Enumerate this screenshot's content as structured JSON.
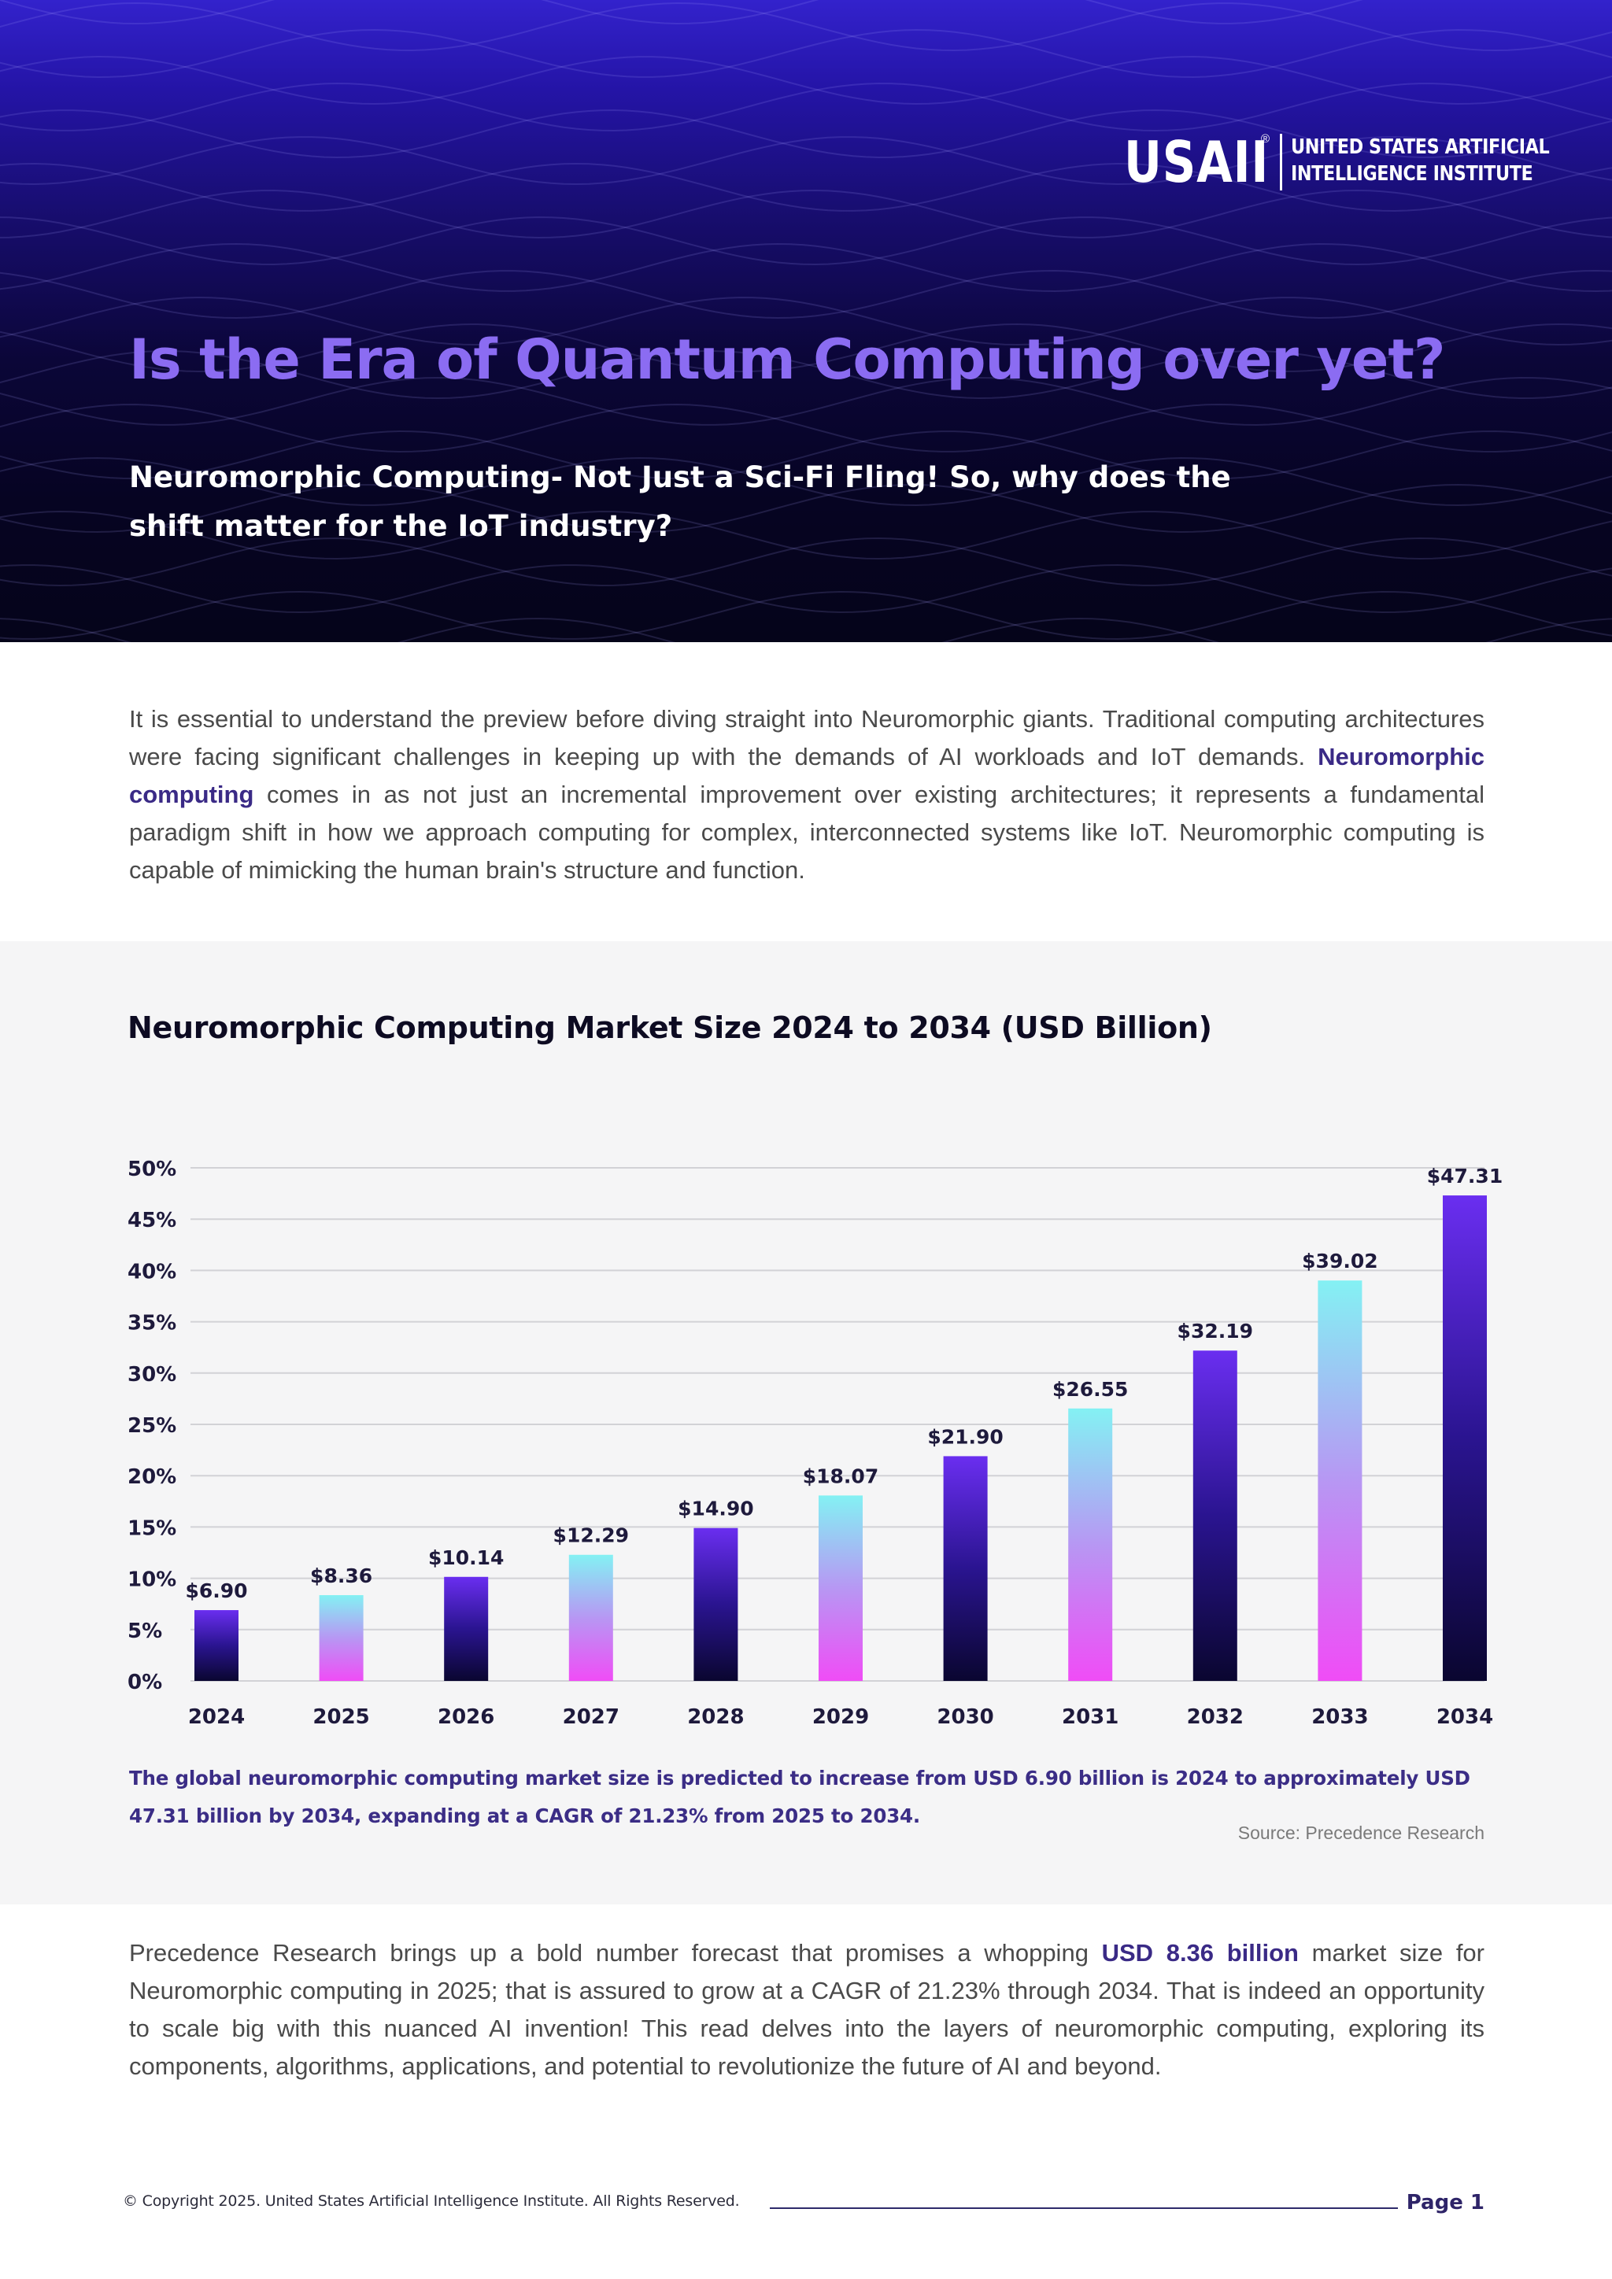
{
  "brand": {
    "mark": "USAII",
    "registered": "®",
    "line1": "UNITED STATES ARTIFICIAL",
    "line2": "INTELLIGENCE INSTITUTE"
  },
  "hero": {
    "title": "Is the Era of Quantum Computing over yet?",
    "subtitle": "Neuromorphic Computing- Not Just a Sci-Fi Fling! So, why does the shift matter for the IoT industry?"
  },
  "intro": {
    "text_before": "It is essential to understand the preview before diving straight into Neuromorphic giants. Traditional computing architectures were facing significant challenges in keeping up with the demands of AI workloads and IoT demands. ",
    "bold": "Neuromorphic computing",
    "text_after": " comes in as not just an incremental improvement over existing architectures; it represents a fundamental paradigm shift in how we approach computing for complex, interconnected systems like IoT. Neuromorphic computing is capable of mimicking the human brain's structure and function."
  },
  "chart_data": {
    "type": "bar",
    "title": "Neuromorphic Computing Market Size 2024 to 2034 (USD Billion)",
    "categories": [
      "2024",
      "2025",
      "2026",
      "2027",
      "2028",
      "2029",
      "2030",
      "2031",
      "2032",
      "2033",
      "2034"
    ],
    "values": [
      6.9,
      8.36,
      10.14,
      12.29,
      14.9,
      18.07,
      21.9,
      26.55,
      32.19,
      39.02,
      47.31
    ],
    "value_labels": [
      "$6.90",
      "$8.36",
      "$10.14",
      "$12.29",
      "$14.90",
      "$18.07",
      "$21.90",
      "$26.55",
      "$32.19",
      "$39.02",
      "$47.31"
    ],
    "bar_styles": [
      "dark",
      "light",
      "dark",
      "light",
      "dark",
      "light",
      "dark",
      "light",
      "dark",
      "light",
      "dark"
    ],
    "y_ticks": [
      0,
      5,
      10,
      15,
      20,
      25,
      30,
      35,
      40,
      45,
      50
    ],
    "y_tick_labels": [
      "0%",
      "5%",
      "10%",
      "15%",
      "20%",
      "25%",
      "30%",
      "35%",
      "40%",
      "45%",
      "50%"
    ],
    "ylim": [
      0,
      50
    ],
    "xlabel": "",
    "ylabel": "",
    "grid": true,
    "colors": {
      "dark_top": "#6a2ef0",
      "dark_mid": "#2a1490",
      "dark_bottom": "#0a0630",
      "light_top": "#84f1f3",
      "light_mid": "#b797f3",
      "light_bottom": "#f04cf6",
      "grid": "#d2d2d6",
      "label": "#1e1a3c"
    },
    "caption": "The global neuromorphic computing market size is predicted to increase from USD 6.90 billion is 2024 to approximately USD 47.31 billion by 2034, expanding at a CAGR of 21.23% from 2025 to 2034.",
    "source": "Source: Precedence Research"
  },
  "outro": {
    "text_before": "Precedence Research brings up a bold number forecast that promises a whopping ",
    "bold": "USD 8.36 billion",
    "text_after": " market size for Neuromorphic computing in 2025; that is assured to grow at a CAGR of 21.23% through 2034. That is indeed an opportunity to scale big with this nuanced AI invention! This read delves into the layers of neuromorphic computing, exploring its components, algorithms, applications, and potential to revolutionize the future of AI and beyond."
  },
  "footer": {
    "copyright": "© Copyright 2025. United States Artificial Intelligence Institute. All Rights Reserved.",
    "page": "Page 1"
  }
}
